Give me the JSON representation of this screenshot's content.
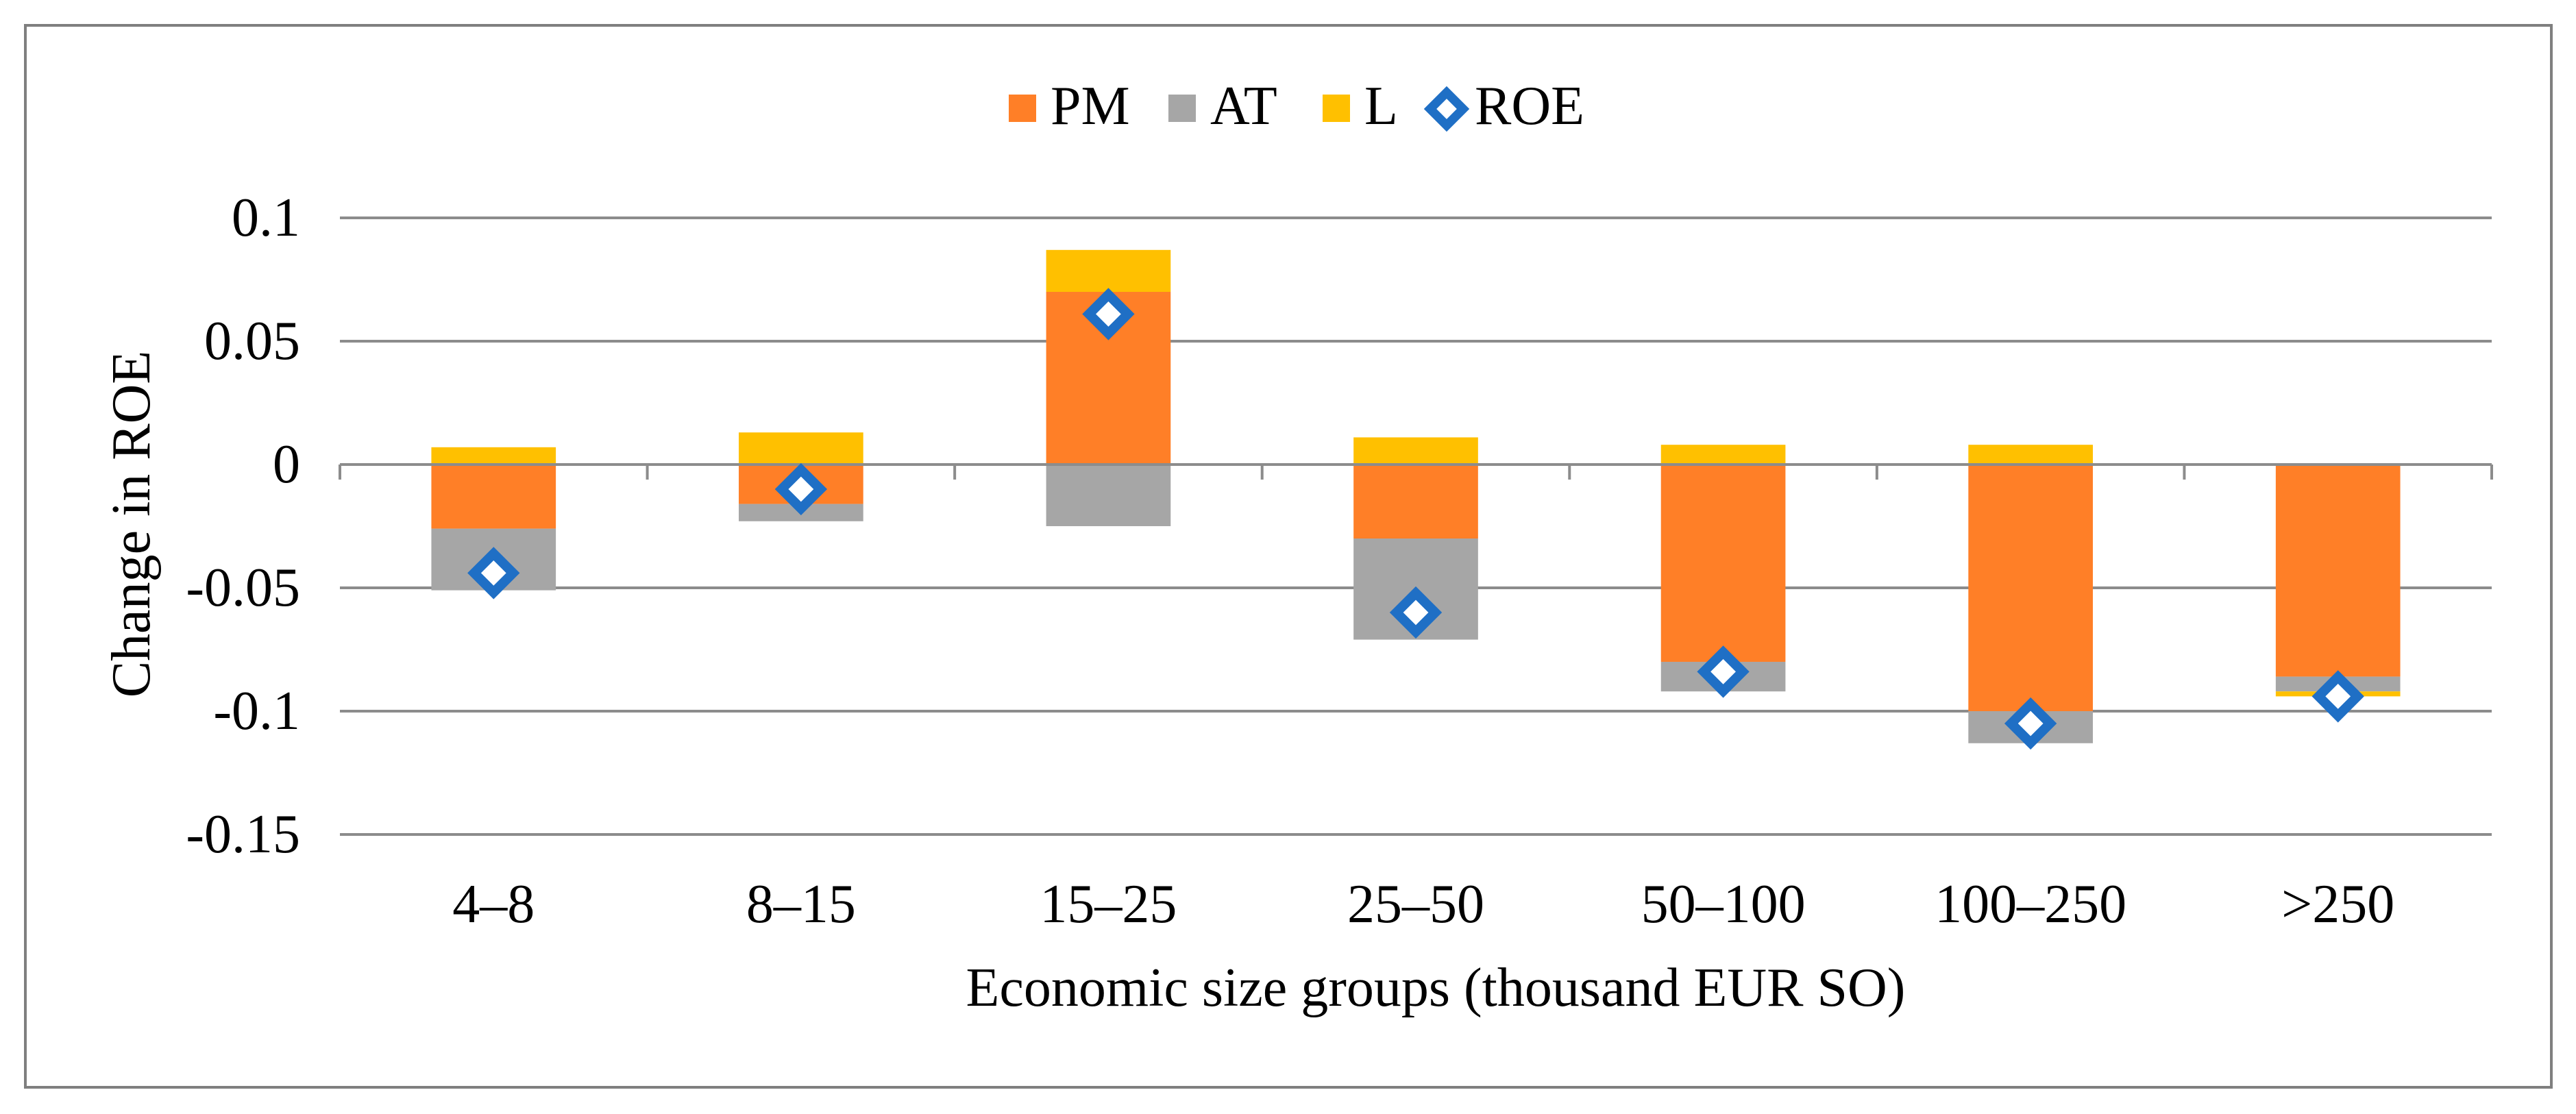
{
  "chart_data": {
    "type": "bar",
    "stacked": true,
    "title": "",
    "xlabel": "Economic size groups (thousand EUR SO)",
    "ylabel": "Change in ROE",
    "ylim": [
      -0.15,
      0.1
    ],
    "yticks": [
      0.1,
      0.05,
      -0.05,
      -0.1,
      -0.15
    ],
    "ytick_labels": [
      "0.1",
      "0.05",
      "0",
      "-0.05",
      "-0.1",
      "-0.15"
    ],
    "ytick_values": [
      0.1,
      0.05,
      0,
      -0.05,
      -0.1,
      -0.15
    ],
    "grid": true,
    "legend_position": "top",
    "categories": [
      "4–8",
      "8–15",
      "15–25",
      "25–50",
      "50–100",
      "100–250",
      ">250"
    ],
    "series": [
      {
        "name": "PM",
        "kind": "bar",
        "color": "#FF7F27",
        "values": [
          -0.026,
          -0.016,
          0.07,
          -0.03,
          -0.08,
          -0.1,
          -0.086
        ]
      },
      {
        "name": "AT",
        "kind": "bar",
        "color": "#A6A6A6",
        "values": [
          -0.025,
          -0.007,
          -0.025,
          -0.041,
          -0.012,
          -0.013,
          -0.006
        ]
      },
      {
        "name": "L",
        "kind": "bar",
        "color": "#FFC000",
        "values": [
          0.007,
          0.013,
          0.017,
          0.011,
          0.008,
          0.008,
          -0.002
        ]
      },
      {
        "name": "ROE",
        "kind": "marker",
        "color": "#1F6FC5",
        "values": [
          -0.044,
          -0.01,
          0.061,
          -0.06,
          -0.084,
          -0.105,
          -0.094
        ]
      }
    ]
  }
}
